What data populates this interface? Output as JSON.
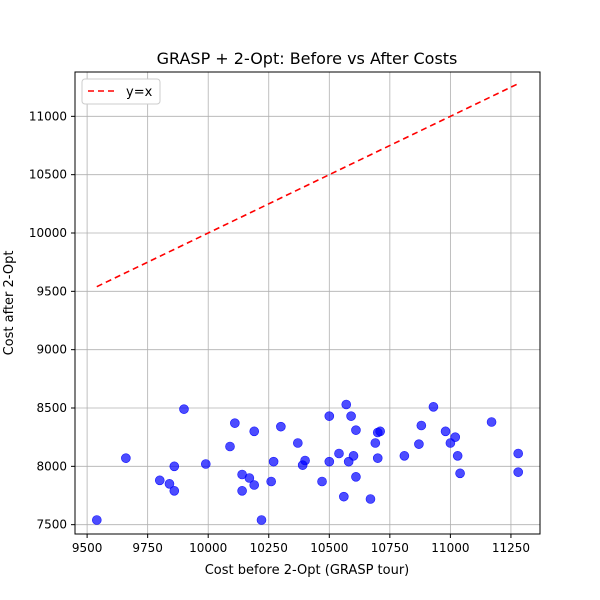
{
  "chart_data": {
    "type": "scatter",
    "title": "GRASP + 2-Opt: Before vs After Costs",
    "xlabel": "Cost before 2-Opt (GRASP tour)",
    "ylabel": "Cost after 2-Opt",
    "xlim": [
      9450,
      11370
    ],
    "ylim": [
      7420,
      11380
    ],
    "xticks": [
      9500,
      9750,
      10000,
      10250,
      10500,
      10750,
      11000,
      11250
    ],
    "yticks": [
      7500,
      8000,
      8500,
      9000,
      9500,
      10000,
      10500,
      11000
    ],
    "grid": true,
    "legend": {
      "placement": "top-left",
      "entries": [
        {
          "label": "y=x",
          "color": "#ff0000",
          "style": "dashed"
        }
      ]
    },
    "reference_line": {
      "label": "y=x",
      "x": [
        9540,
        11280
      ],
      "y": [
        9540,
        11280
      ],
      "color": "#ff0000"
    },
    "series": [
      {
        "color": "#0000ff",
        "points": [
          [
            9540,
            7540
          ],
          [
            9660,
            8070
          ],
          [
            9800,
            7880
          ],
          [
            9840,
            7850
          ],
          [
            9860,
            7790
          ],
          [
            9860,
            8000
          ],
          [
            9900,
            8490
          ],
          [
            9990,
            8020
          ],
          [
            10090,
            8170
          ],
          [
            10110,
            8370
          ],
          [
            10140,
            7930
          ],
          [
            10140,
            7790
          ],
          [
            10170,
            7900
          ],
          [
            10190,
            8300
          ],
          [
            10190,
            7840
          ],
          [
            10220,
            7540
          ],
          [
            10260,
            7870
          ],
          [
            10270,
            8040
          ],
          [
            10300,
            8340
          ],
          [
            10370,
            8200
          ],
          [
            10390,
            8010
          ],
          [
            10400,
            8050
          ],
          [
            10470,
            7870
          ],
          [
            10500,
            8430
          ],
          [
            10500,
            8040
          ],
          [
            10540,
            8110
          ],
          [
            10560,
            7740
          ],
          [
            10570,
            8530
          ],
          [
            10580,
            8040
          ],
          [
            10590,
            8430
          ],
          [
            10600,
            8090
          ],
          [
            10610,
            8310
          ],
          [
            10610,
            7910
          ],
          [
            10670,
            7720
          ],
          [
            10690,
            8200
          ],
          [
            10700,
            8070
          ],
          [
            10700,
            8290
          ],
          [
            10710,
            8300
          ],
          [
            10810,
            8090
          ],
          [
            10870,
            8190
          ],
          [
            10880,
            8350
          ],
          [
            10930,
            8510
          ],
          [
            10980,
            8300
          ],
          [
            11000,
            8200
          ],
          [
            11020,
            8250
          ],
          [
            11030,
            8090
          ],
          [
            11040,
            7940
          ],
          [
            11170,
            8380
          ],
          [
            11280,
            8110
          ],
          [
            11280,
            7950
          ]
        ]
      }
    ]
  }
}
